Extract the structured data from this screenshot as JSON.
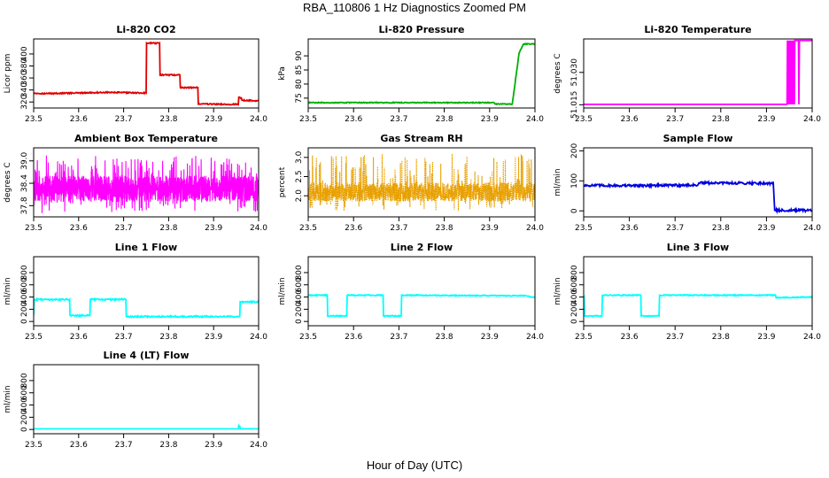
{
  "title": "RBA_110806  1 Hz Diagnostics Zoomed PM",
  "x_label": "Hour of Day (UTC)",
  "colors": {
    "red": "#e00000",
    "green": "#00b000",
    "magenta": "#ff00ff",
    "orange": "#e8a000",
    "blue": "#0000e0",
    "cyan": "#00ffff"
  },
  "chart_data": [
    {
      "type": "line",
      "title": "Li-820 CO2",
      "ylabel": "Licor ppm",
      "xlim": [
        23.5,
        24.0
      ],
      "xticks": [
        "23.5",
        "23.6",
        "23.7",
        "23.8",
        "23.9",
        "24.0"
      ],
      "ylim": [
        310,
        425
      ],
      "yticks": [
        "320",
        "340",
        "360",
        "380",
        "400"
      ],
      "color": "#e00000",
      "noise": 1.0,
      "series": [
        {
          "x": [
            23.5,
            23.52,
            23.6,
            23.66,
            23.75,
            23.751,
            23.78,
            23.781,
            23.825,
            23.826,
            23.865,
            23.866,
            23.93,
            23.955,
            23.956,
            23.962,
            23.963,
            24.0
          ],
          "y": [
            335,
            334,
            335,
            336,
            335,
            418,
            418,
            365,
            365,
            344,
            344,
            317,
            316,
            316,
            328,
            326,
            323,
            322
          ]
        }
      ]
    },
    {
      "type": "line",
      "title": "Li-820 Pressure",
      "ylabel": "kPa",
      "xlim": [
        23.5,
        24.0
      ],
      "xticks": [
        "23.5",
        "23.6",
        "23.7",
        "23.8",
        "23.9",
        "24.0"
      ],
      "ylim": [
        71.5,
        96
      ],
      "yticks": [
        "75",
        "80",
        "85",
        "90"
      ],
      "color": "#00b000",
      "noise": 0.15,
      "series": [
        {
          "x": [
            23.5,
            23.91,
            23.912,
            23.95,
            23.965,
            23.975,
            24.0
          ],
          "y": [
            73.4,
            73.4,
            72.9,
            72.9,
            91,
            94.2,
            94.2
          ]
        }
      ]
    },
    {
      "type": "line",
      "title": "Li-820 Temperature",
      "ylabel": "degrees C",
      "xlim": [
        23.5,
        24.0
      ],
      "xticks": [
        "23.5",
        "23.6",
        "23.7",
        "23.8",
        "23.9",
        "24.0"
      ],
      "ylim": [
        51.0135,
        51.0455
      ],
      "yticks": [
        "51.015",
        "51.030"
      ],
      "color": "#ff00ff",
      "noise": 0,
      "series": [
        {
          "x": [
            23.5,
            23.945,
            23.946,
            23.947,
            23.948,
            23.949,
            23.95,
            23.951,
            23.952,
            23.953,
            23.954,
            23.955,
            23.956,
            23.957,
            23.958,
            23.959,
            23.96,
            23.961,
            23.962,
            23.97,
            23.971,
            23.972,
            23.973,
            24.0
          ],
          "y": [
            51.0152,
            51.0152,
            51.0448,
            51.0152,
            51.0448,
            51.0152,
            51.0448,
            51.0152,
            51.0448,
            51.0152,
            51.0448,
            51.0152,
            51.0448,
            51.0152,
            51.0448,
            51.0152,
            51.0448,
            51.0152,
            51.0448,
            51.0448,
            51.0152,
            51.0448,
            51.0448,
            51.0448
          ]
        }
      ]
    },
    {
      "type": "line",
      "title": "Ambient Box Temperature",
      "ylabel": "degrees C",
      "xlim": [
        23.5,
        24.0
      ],
      "xticks": [
        "23.5",
        "23.6",
        "23.7",
        "23.8",
        "23.9",
        "24.0"
      ],
      "ylim": [
        37.5,
        39.35
      ],
      "yticks": [
        "37.8",
        "38.4",
        "39.0"
      ],
      "color": "#ff00ff",
      "noise": 0,
      "band": {
        "low": 37.9,
        "high": 38.6,
        "spike_high": 39.15,
        "spike_low": 37.6,
        "n": 1500,
        "seed": 11
      }
    },
    {
      "type": "line",
      "title": "Gas Stream RH",
      "ylabel": "percent",
      "xlim": [
        23.5,
        24.0
      ],
      "xticks": [
        "23.5",
        "23.6",
        "23.7",
        "23.8",
        "23.9",
        "24.0"
      ],
      "ylim": [
        1.45,
        3.25
      ],
      "yticks": [
        "2.0",
        "2.5",
        "3.0"
      ],
      "color": "#e8a000",
      "noise": 0,
      "band": {
        "low": 1.85,
        "high": 2.35,
        "spike_high": 3.1,
        "spike_low": 1.6,
        "n": 1500,
        "seed": 23,
        "dotted": true
      }
    },
    {
      "type": "line",
      "title": "Sample Flow",
      "ylabel": "ml/min",
      "xlim": [
        23.5,
        24.0
      ],
      "xticks": [
        "23.5",
        "23.6",
        "23.7",
        "23.8",
        "23.9",
        "24.0"
      ],
      "ylim": [
        -20,
        210
      ],
      "yticks": [
        "0",
        "100",
        "200"
      ],
      "color": "#0000e0",
      "noise": 4,
      "series": [
        {
          "x": [
            23.5,
            23.6,
            23.75,
            23.752,
            23.915,
            23.918,
            24.0
          ],
          "y": [
            85,
            84,
            86,
            93,
            92,
            2,
            1
          ]
        }
      ]
    },
    {
      "type": "line",
      "title": "Line 1 Flow",
      "ylabel": "ml/min",
      "xlim": [
        23.5,
        24.0
      ],
      "xticks": [
        "23.5",
        "23.6",
        "23.7",
        "23.8",
        "23.9",
        "24.0"
      ],
      "ylim": [
        -70,
        1060
      ],
      "yticks": [
        "0",
        "200",
        "400",
        "600",
        "800"
      ],
      "color": "#00ffff",
      "noise": 12,
      "series": [
        {
          "x": [
            23.5,
            23.501,
            23.502,
            23.58,
            23.581,
            23.625,
            23.626,
            23.705,
            23.706,
            23.958,
            23.959,
            24.0
          ],
          "y": [
            100,
            360,
            360,
            360,
            100,
            100,
            360,
            360,
            80,
            80,
            320,
            320
          ]
        }
      ]
    },
    {
      "type": "line",
      "title": "Line 2 Flow",
      "ylabel": "ml/min",
      "xlim": [
        23.5,
        24.0
      ],
      "xticks": [
        "23.5",
        "23.6",
        "23.7",
        "23.8",
        "23.9",
        "24.0"
      ],
      "ylim": [
        -70,
        1060
      ],
      "yticks": [
        "0",
        "200",
        "400",
        "600",
        "800"
      ],
      "color": "#00ffff",
      "noise": 8,
      "series": [
        {
          "x": [
            23.5,
            23.542,
            23.543,
            23.585,
            23.586,
            23.665,
            23.666,
            23.705,
            23.706,
            23.98,
            24.0
          ],
          "y": [
            430,
            430,
            90,
            90,
            430,
            430,
            90,
            90,
            430,
            420,
            390
          ]
        }
      ]
    },
    {
      "type": "line",
      "title": "Line 3 Flow",
      "ylabel": "ml/min",
      "xlim": [
        23.5,
        24.0
      ],
      "xticks": [
        "23.5",
        "23.6",
        "23.7",
        "23.8",
        "23.9",
        "24.0"
      ],
      "ylim": [
        -70,
        1060
      ],
      "yticks": [
        "0",
        "200",
        "400",
        "600",
        "800"
      ],
      "color": "#00ffff",
      "noise": 8,
      "series": [
        {
          "x": [
            23.5,
            23.501,
            23.502,
            23.54,
            23.541,
            23.625,
            23.626,
            23.665,
            23.666,
            23.92,
            23.921,
            24.0
          ],
          "y": [
            90,
            430,
            90,
            90,
            430,
            430,
            90,
            90,
            430,
            430,
            390,
            400
          ]
        }
      ]
    },
    {
      "type": "line",
      "title": "Line 4 (LT) Flow",
      "ylabel": "ml/min",
      "xlim": [
        23.5,
        24.0
      ],
      "xticks": [
        "23.5",
        "23.6",
        "23.7",
        "23.8",
        "23.9",
        "24.0"
      ],
      "ylim": [
        -70,
        1060
      ],
      "yticks": [
        "0",
        "200",
        "400",
        "600",
        "800"
      ],
      "color": "#00ffff",
      "noise": 0,
      "series": [
        {
          "x": [
            23.5,
            23.955,
            23.956,
            23.957,
            23.958,
            23.959,
            24.0
          ],
          "y": [
            10,
            10,
            80,
            30,
            60,
            12,
            10
          ]
        }
      ]
    }
  ]
}
